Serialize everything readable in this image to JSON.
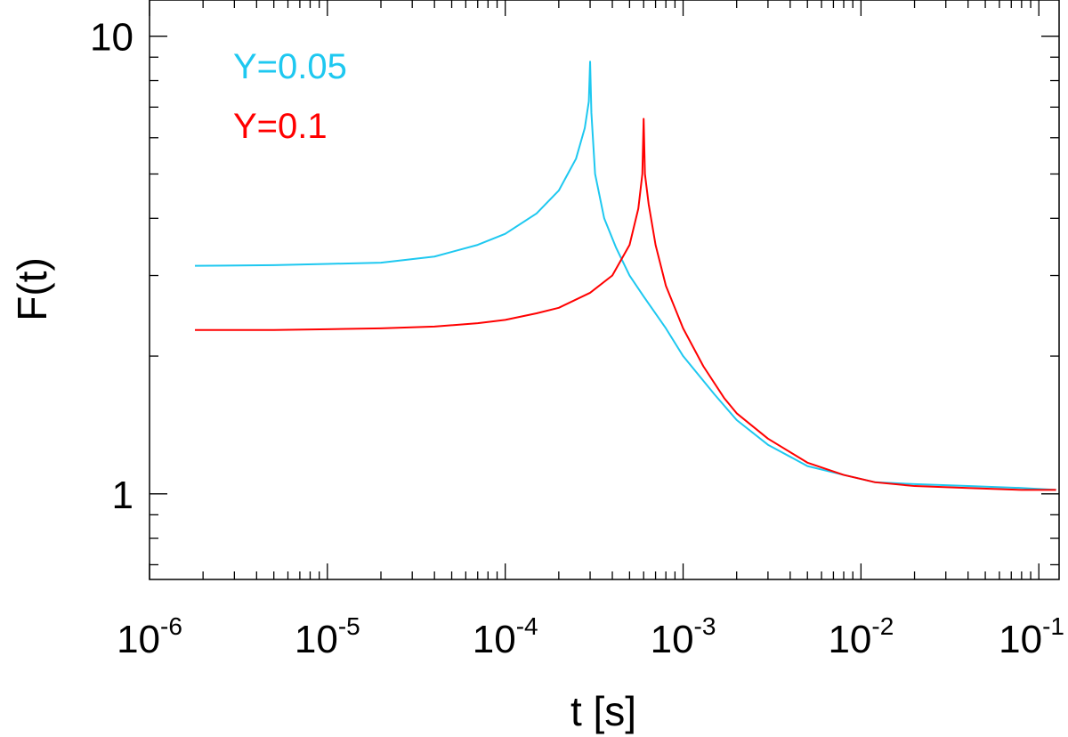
{
  "chart_data": {
    "type": "line",
    "title": "",
    "xlabel": "t [s]",
    "ylabel": "F(t)",
    "xscale": "log",
    "yscale": "log",
    "xlim": [
      1e-06,
      0.13
    ],
    "ylim": [
      0.65,
      12.0
    ],
    "x_ticks": [
      {
        "value": 1e-06,
        "base": "10",
        "exp": "-6"
      },
      {
        "value": 1e-05,
        "base": "10",
        "exp": "-5"
      },
      {
        "value": 0.0001,
        "base": "10",
        "exp": "-4"
      },
      {
        "value": 0.001,
        "base": "10",
        "exp": "-3"
      },
      {
        "value": 0.01,
        "base": "10",
        "exp": "-2"
      },
      {
        "value": 0.1,
        "base": "10",
        "exp": "-1"
      }
    ],
    "y_ticks": [
      {
        "value": 1,
        "label": "1"
      },
      {
        "value": 10,
        "label": "10"
      }
    ],
    "grid": false,
    "legend_position": "top-left",
    "series": [
      {
        "name": "Y=0.05",
        "color": "#1ec8f0",
        "x": [
          1.8e-06,
          5e-06,
          1e-05,
          2e-05,
          4e-05,
          7e-05,
          0.0001,
          0.00015,
          0.0002,
          0.00025,
          0.00028,
          0.000295,
          0.0003,
          0.000305,
          0.00032,
          0.00036,
          0.00042,
          0.0005,
          0.0006,
          0.0008,
          0.001,
          0.0015,
          0.002,
          0.003,
          0.005,
          0.008,
          0.012,
          0.02,
          0.04,
          0.08,
          0.125
        ],
        "y": [
          3.15,
          3.16,
          3.18,
          3.2,
          3.3,
          3.5,
          3.7,
          4.1,
          4.6,
          5.4,
          6.3,
          7.2,
          8.8,
          6.8,
          5.0,
          4.0,
          3.45,
          3.0,
          2.7,
          2.3,
          2.0,
          1.65,
          1.45,
          1.28,
          1.15,
          1.1,
          1.06,
          1.05,
          1.04,
          1.03,
          1.02
        ]
      },
      {
        "name": "Y=0.1",
        "color": "#ff0000",
        "x": [
          1.8e-06,
          5e-06,
          1e-05,
          2e-05,
          4e-05,
          7e-05,
          0.0001,
          0.00015,
          0.0002,
          0.0003,
          0.0004,
          0.0005,
          0.00056,
          0.00059,
          0.0006,
          0.00061,
          0.00064,
          0.0007,
          0.0008,
          0.001,
          0.0013,
          0.0017,
          0.002,
          0.003,
          0.005,
          0.008,
          0.012,
          0.02,
          0.04,
          0.08,
          0.125
        ],
        "y": [
          2.28,
          2.28,
          2.29,
          2.3,
          2.32,
          2.36,
          2.4,
          2.48,
          2.55,
          2.75,
          3.0,
          3.5,
          4.2,
          5.0,
          6.6,
          5.0,
          4.3,
          3.5,
          2.85,
          2.3,
          1.9,
          1.62,
          1.5,
          1.32,
          1.17,
          1.1,
          1.06,
          1.04,
          1.03,
          1.02,
          1.02
        ]
      }
    ],
    "legend": [
      {
        "label": "Y=0.05",
        "color": "#1ec8f0"
      },
      {
        "label": "Y=0.1",
        "color": "#ff0000"
      }
    ]
  }
}
